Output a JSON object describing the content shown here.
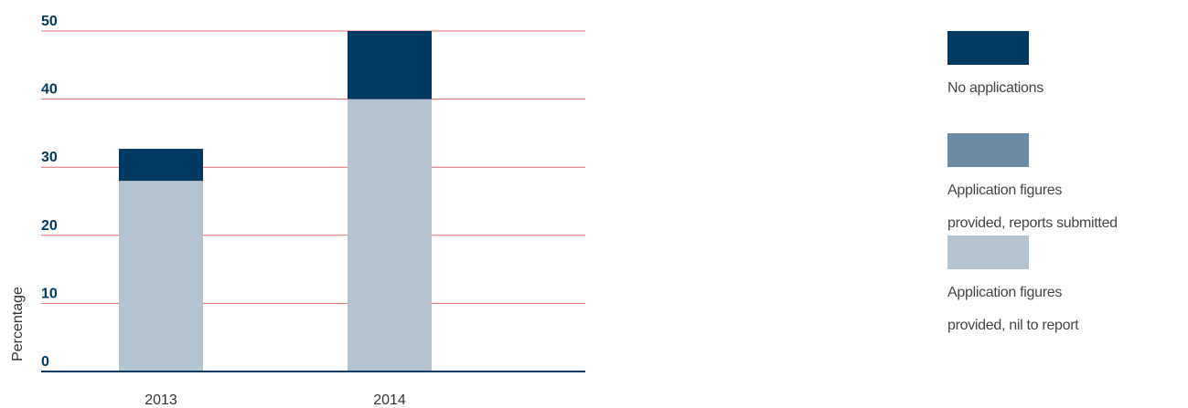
{
  "chart_data": {
    "type": "stacked_bar",
    "categories": [
      "2013",
      "2014"
    ],
    "series": [
      {
        "name": "Application figures\nprovided, nil to report",
        "color": "#b4c3d0",
        "values": [
          28,
          40
        ]
      },
      {
        "name": "Application figures\nprovided, reports submitted",
        "color": "#6b8aa3",
        "values": [
          0,
          0
        ]
      },
      {
        "name": "No applications",
        "color": "#003a63",
        "values": [
          4.7,
          10
        ]
      }
    ],
    "ylabel": "Percentage",
    "ylim": [
      0,
      50
    ],
    "yticks": [
      0,
      10,
      20,
      30,
      40,
      50
    ],
    "grid": true,
    "grid_color": "#e06b6b",
    "legend": "right"
  }
}
